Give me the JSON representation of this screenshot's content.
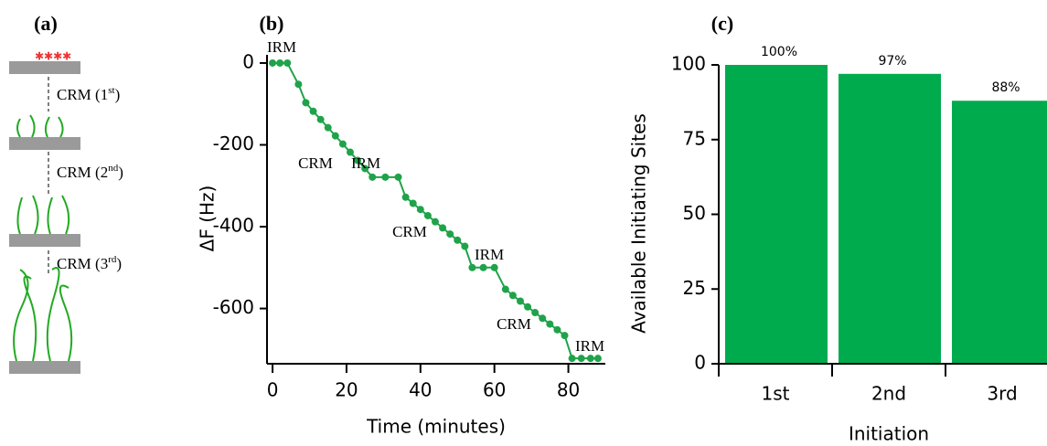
{
  "panel_a": {
    "label": "(a)",
    "steps": [
      {
        "prefix": "CRM (1",
        "sup": "st",
        "suffix": ")"
      },
      {
        "prefix": "CRM (2",
        "sup": "nd",
        "suffix": ")"
      },
      {
        "prefix": "CRM (3",
        "sup": "rd",
        "suffix": ")"
      }
    ]
  },
  "chart_data": [
    {
      "type": "line",
      "title": "(b)",
      "x_label": "Time (minutes)",
      "y_label": "ΔF (Hz)",
      "color": "#1fa34a",
      "x": [
        0,
        2,
        4,
        7,
        9,
        11,
        13,
        15,
        17,
        19,
        21,
        23,
        25,
        27,
        30.5,
        34,
        36,
        38,
        40,
        42,
        44,
        46,
        48,
        50,
        52,
        54,
        57,
        60,
        63,
        65,
        67,
        69,
        71,
        73,
        75,
        77,
        79,
        81,
        83.5,
        86,
        88
      ],
      "values": [
        0,
        0,
        0,
        -52,
        -97,
        -118,
        -138,
        -158,
        -178,
        -198,
        -218,
        -238,
        -258,
        -279,
        -279,
        -279,
        -328,
        -343,
        -358,
        -373,
        -388,
        -403,
        -418,
        -433,
        -448,
        -500,
        -500,
        -500,
        -553,
        -568,
        -582,
        -596,
        -610,
        -624,
        -638,
        -652,
        -666,
        -722,
        -722,
        -722,
        -722
      ],
      "xlim": [
        -1.5,
        90
      ],
      "xticks": [
        0,
        20,
        40,
        60,
        80
      ],
      "ylim": [
        -735,
        20
      ],
      "yticks": [
        0,
        -200,
        -400,
        -600
      ],
      "annotations": [
        "IRM",
        "CRM",
        "IRM",
        "CRM",
        "IRM",
        "CRM",
        "IRM"
      ]
    },
    {
      "type": "bar",
      "title": "(c)",
      "x_label": "Initiation",
      "y_label": "Available Initiating Sites",
      "color": "#00ab4e",
      "categories": [
        "1st",
        "2nd",
        "3rd"
      ],
      "values": [
        100,
        97,
        88
      ],
      "value_labels": [
        "100%",
        "97%",
        "88%"
      ],
      "ylim": [
        0,
        100
      ],
      "yticks": [
        0,
        25,
        50,
        75,
        100
      ]
    }
  ]
}
